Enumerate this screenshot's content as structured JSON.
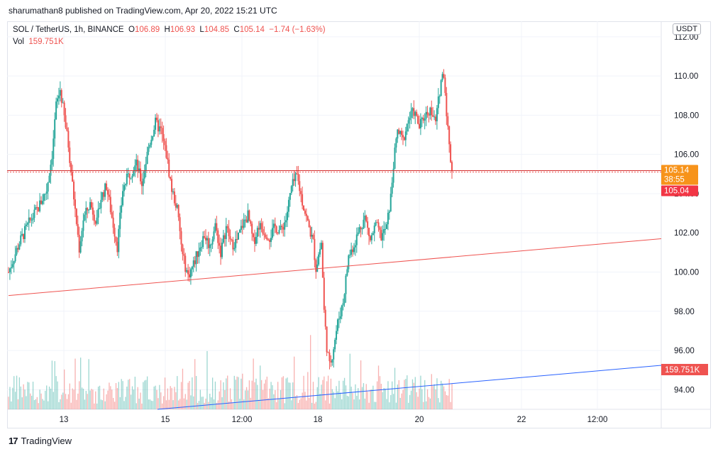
{
  "attribution": "sharumathan8 published on TradingView.com, Apr 20, 2022 15:21 UTC",
  "legend": {
    "symbol": "SOL / TetherUS, 1h, BINANCE",
    "open_label": "O",
    "open": "106.89",
    "high_label": "H",
    "high": "106.93",
    "low_label": "L",
    "low": "104.85",
    "close_label": "C",
    "close": "105.14",
    "change": "−1.74 (−1.63%)",
    "vol_label": "Vol",
    "vol_value": "159.751K"
  },
  "currency_button": "USDT",
  "footer": {
    "brand": "TradingView",
    "logo_icon": "tradingview-logo-icon"
  },
  "colors": {
    "up": "#26a69a",
    "down": "#ef5350",
    "support_line": "#ef5350",
    "volume_trend": "#2962ff",
    "price_tag": "#f7931a"
  },
  "chart_data": {
    "type": "candlestick",
    "ylim": [
      93,
      112.5
    ],
    "y_ticks": [
      "94.00",
      "96.00",
      "98.00",
      "100.00",
      "102.00",
      "104.00",
      "106.00",
      "108.00",
      "110.00",
      "112.00"
    ],
    "x_ticks": [
      "13",
      "15",
      "12:00",
      "18",
      "20",
      "22",
      "12:00"
    ],
    "last_price": "105.14",
    "countdown": "38:55",
    "last_candle_open_label": "105.04",
    "volume_label": "159.751K",
    "horizontal_level": 105.14,
    "trendlines": [
      {
        "name": "",
        "color": "#ef5350",
        "from": [
          "Apr 12",
          98.8
        ],
        "to": [
          "Apr 23",
          101.7
        ]
      },
      {
        "name": "",
        "color": "#2962ff",
        "from": [
          "Apr 14",
          "volume low"
        ],
        "to": [
          "Apr 23",
          "volume high"
        ]
      }
    ],
    "price_path": [
      [
        0,
        100
      ],
      [
        8,
        101.5
      ],
      [
        15,
        102.5
      ],
      [
        22,
        103.3
      ],
      [
        28,
        104.2
      ],
      [
        32,
        106
      ],
      [
        35,
        108.5
      ],
      [
        38,
        109.3
      ],
      [
        44,
        106.5
      ],
      [
        48,
        103.8
      ],
      [
        52,
        101.2
      ],
      [
        55,
        102.7
      ],
      [
        60,
        103.5
      ],
      [
        65,
        102.5
      ],
      [
        68,
        103.8
      ],
      [
        72,
        104.4
      ],
      [
        76,
        102.8
      ],
      [
        80,
        101.3
      ],
      [
        84,
        104.2
      ],
      [
        88,
        104.9
      ],
      [
        94,
        105.5
      ],
      [
        98,
        104.5
      ],
      [
        103,
        106.4
      ],
      [
        108,
        107.6
      ],
      [
        112,
        107.2
      ],
      [
        116,
        106
      ],
      [
        120,
        104.2
      ],
      [
        124,
        103.2
      ],
      [
        128,
        100.8
      ],
      [
        132,
        99.8
      ],
      [
        136,
        100.4
      ],
      [
        140,
        101.2
      ],
      [
        144,
        101.9
      ],
      [
        148,
        101.3
      ],
      [
        152,
        102.4
      ],
      [
        156,
        101
      ],
      [
        160,
        102.3
      ],
      [
        164,
        101.4
      ],
      [
        168,
        101.6
      ],
      [
        172,
        102.4
      ],
      [
        176,
        102.9
      ],
      [
        180,
        101.5
      ],
      [
        184,
        102.4
      ],
      [
        188,
        102.1
      ],
      [
        192,
        101.8
      ],
      [
        196,
        102.3
      ],
      [
        200,
        102.1
      ],
      [
        204,
        102.7
      ],
      [
        208,
        104.3
      ],
      [
        212,
        104.9
      ],
      [
        216,
        103.6
      ],
      [
        220,
        102.5
      ],
      [
        224,
        101.5
      ],
      [
        226,
        100.2
      ],
      [
        228,
        100.9
      ],
      [
        230,
        101.5
      ],
      [
        232,
        98
      ],
      [
        234,
        96.2
      ],
      [
        236,
        95.2
      ],
      [
        238,
        95.8
      ],
      [
        242,
        97.4
      ],
      [
        246,
        98.5
      ],
      [
        250,
        100.8
      ],
      [
        254,
        101.4
      ],
      [
        258,
        102.2
      ],
      [
        262,
        102.8
      ],
      [
        266,
        101.6
      ],
      [
        270,
        102.4
      ],
      [
        274,
        101.8
      ],
      [
        278,
        102.3
      ],
      [
        281,
        103.8
      ],
      [
        283,
        105.5
      ],
      [
        286,
        107.2
      ],
      [
        290,
        106.7
      ],
      [
        294,
        107.8
      ],
      [
        298,
        108.2
      ],
      [
        302,
        107.4
      ],
      [
        306,
        108
      ],
      [
        310,
        108.3
      ],
      [
        314,
        107.6
      ],
      [
        318,
        109.8
      ],
      [
        320,
        110.2
      ],
      [
        322,
        108.2
      ],
      [
        324,
        106.4
      ],
      [
        326,
        105.14
      ]
    ],
    "volume_description": "hourly volume bars along bottom of pane"
  }
}
